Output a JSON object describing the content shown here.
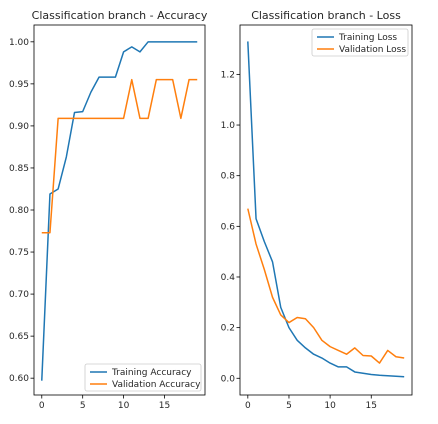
{
  "colors": {
    "training": "#1f77b4",
    "validation": "#ff7f0e",
    "axis": "#000000",
    "legend_border": "#cccccc"
  },
  "chart_data": [
    {
      "type": "line",
      "title": "Classification branch - Accuracy",
      "xlabel": "",
      "ylabel": "",
      "xlim": [
        -0.95,
        19.95
      ],
      "ylim": [
        0.58,
        1.02
      ],
      "xticks": [
        0,
        5,
        10,
        15
      ],
      "xtick_labels": [
        "0",
        "5",
        "10",
        "15"
      ],
      "yticks": [
        0.6,
        0.65,
        0.7,
        0.75,
        0.8,
        0.85,
        0.9,
        0.95,
        1.0
      ],
      "ytick_labels": [
        "0.60",
        "0.65",
        "0.70",
        "0.75",
        "0.80",
        "0.85",
        "0.90",
        "0.95",
        "1.00"
      ],
      "grid": false,
      "legend_position": "lower-right",
      "x": [
        0,
        1,
        2,
        3,
        4,
        5,
        6,
        7,
        8,
        9,
        10,
        11,
        12,
        13,
        14,
        15,
        16,
        17,
        18,
        19
      ],
      "series": [
        {
          "name": "Training Accuracy",
          "color_key": "training",
          "values": [
            0.597,
            0.819,
            0.825,
            0.863,
            0.916,
            0.917,
            0.94,
            0.958,
            0.958,
            0.958,
            0.988,
            0.994,
            0.988,
            1.0,
            1.0,
            1.0,
            1.0,
            1.0,
            1.0,
            1.0
          ]
        },
        {
          "name": "Validation Accuracy",
          "color_key": "validation",
          "values": [
            0.773,
            0.773,
            0.909,
            0.909,
            0.909,
            0.909,
            0.909,
            0.909,
            0.909,
            0.909,
            0.909,
            0.955,
            0.909,
            0.909,
            0.955,
            0.955,
            0.955,
            0.909,
            0.955,
            0.955
          ]
        }
      ]
    },
    {
      "type": "line",
      "title": "Classification branch - Loss",
      "xlabel": "",
      "ylabel": "",
      "xlim": [
        -0.95,
        19.95
      ],
      "ylim": [
        -0.066,
        1.395
      ],
      "xticks": [
        0,
        5,
        10,
        15
      ],
      "xtick_labels": [
        "0",
        "5",
        "10",
        "15"
      ],
      "yticks": [
        0.0,
        0.2,
        0.4,
        0.6,
        0.8,
        1.0,
        1.2
      ],
      "ytick_labels": [
        "0.0",
        "0.2",
        "0.4",
        "0.6",
        "0.8",
        "1.0",
        "1.2"
      ],
      "grid": false,
      "legend_position": "upper-right",
      "x": [
        0,
        1,
        2,
        3,
        4,
        5,
        6,
        7,
        8,
        9,
        10,
        11,
        12,
        13,
        14,
        15,
        16,
        17,
        18,
        19
      ],
      "series": [
        {
          "name": "Training Loss",
          "color_key": "training",
          "values": [
            1.33,
            0.63,
            0.54,
            0.46,
            0.28,
            0.2,
            0.15,
            0.12,
            0.095,
            0.08,
            0.06,
            0.045,
            0.045,
            0.025,
            0.02,
            0.015,
            0.012,
            0.01,
            0.008,
            0.006
          ]
        },
        {
          "name": "Validation Loss",
          "color_key": "validation",
          "values": [
            0.67,
            0.53,
            0.43,
            0.32,
            0.25,
            0.22,
            0.24,
            0.235,
            0.2,
            0.15,
            0.125,
            0.11,
            0.095,
            0.12,
            0.09,
            0.088,
            0.06,
            0.11,
            0.085,
            0.08
          ]
        }
      ]
    }
  ]
}
